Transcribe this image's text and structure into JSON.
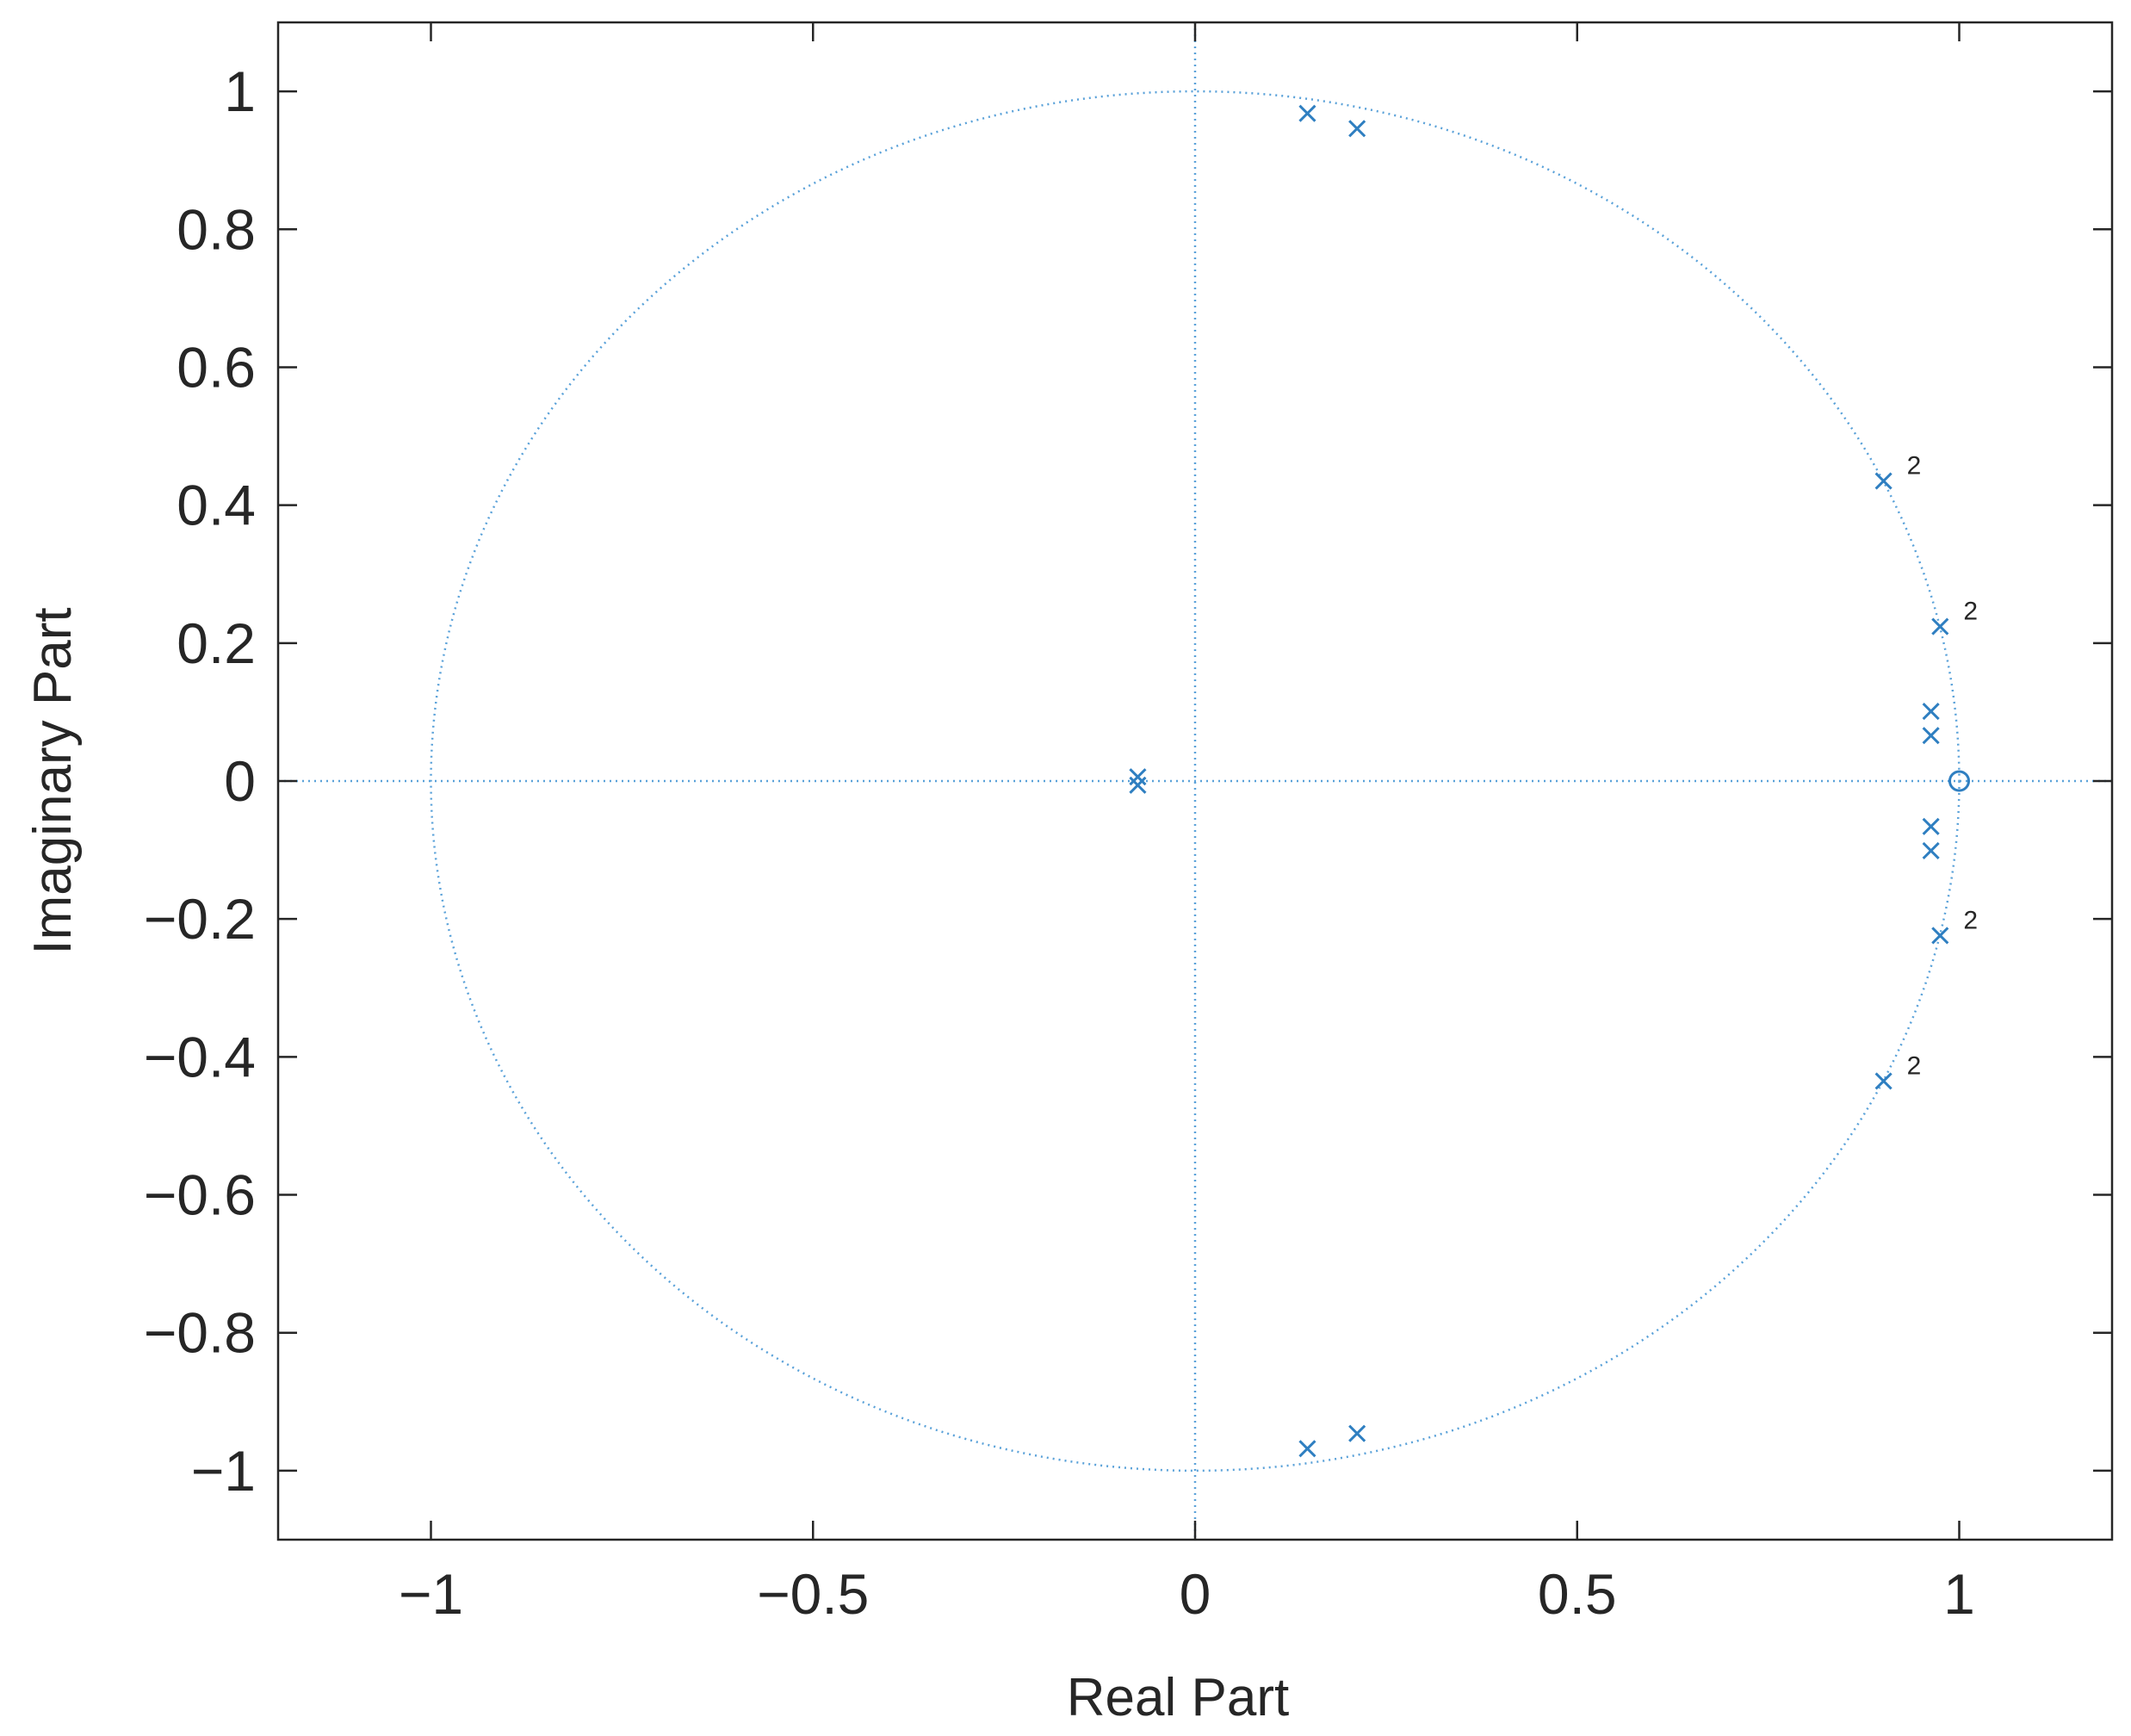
{
  "chart_data": {
    "type": "scatter",
    "title": "",
    "xlabel": "Real Part",
    "ylabel": "Imaginary Part",
    "xlim": [
      -1.2,
      1.2
    ],
    "ylim": [
      -1.1,
      1.1
    ],
    "xticks": [
      -1,
      -0.5,
      0,
      0.5,
      1
    ],
    "yticks": [
      -1,
      -0.8,
      -0.6,
      -0.4,
      -0.2,
      0,
      0.2,
      0.4,
      0.6,
      0.8,
      1
    ],
    "xtick_labels": [
      "−1",
      "−0.5",
      "0",
      "0.5",
      "1"
    ],
    "ytick_labels": [
      "−1",
      "−0.8",
      "−0.6",
      "−0.4",
      "−0.2",
      "0",
      "0.2",
      "0.4",
      "0.6",
      "0.8",
      "1"
    ],
    "grid": false,
    "unit_circle": true,
    "zero_axes": true,
    "series": [
      {
        "marker": "x",
        "color": "#2f7fc1",
        "points": [
          {
            "re": 0.147,
            "im": 0.968
          },
          {
            "re": 0.212,
            "im": 0.946
          },
          {
            "re": 0.147,
            "im": -0.968
          },
          {
            "re": 0.212,
            "im": -0.946
          },
          {
            "re": 0.901,
            "im": 0.435
          },
          {
            "re": 0.901,
            "im": -0.435
          },
          {
            "re": 0.975,
            "im": 0.224
          },
          {
            "re": 0.975,
            "im": -0.224
          },
          {
            "re": 0.963,
            "im": 0.101
          },
          {
            "re": 0.963,
            "im": 0.066
          },
          {
            "re": 0.963,
            "im": -0.066
          },
          {
            "re": 0.963,
            "im": -0.101
          },
          {
            "re": -0.075,
            "im": 0.006
          },
          {
            "re": -0.075,
            "im": -0.006
          }
        ]
      },
      {
        "marker": "o",
        "color": "#2f7fc1",
        "points": [
          {
            "re": 1.0,
            "im": 0.0
          }
        ]
      }
    ],
    "annotations": [
      {
        "text": "2",
        "re": 0.901,
        "im": 0.435
      },
      {
        "text": "2",
        "re": 0.975,
        "im": 0.224
      },
      {
        "text": "2",
        "re": 0.975,
        "im": -0.224
      },
      {
        "text": "2",
        "re": 0.901,
        "im": -0.435
      }
    ]
  }
}
